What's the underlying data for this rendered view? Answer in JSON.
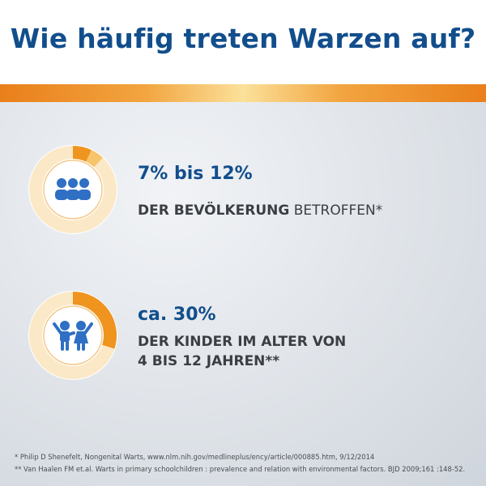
{
  "header": {
    "title": "Wie häufig treten Warzen auf?"
  },
  "stats": [
    {
      "value": "7% bis 12%",
      "desc_bold": "DER BEVÖLKERUNG",
      "desc_rest": " BETROFFEN*",
      "ring_fraction": 0.12,
      "icon": "people-group-icon"
    },
    {
      "value": "ca. 30%",
      "desc_line1": "DER KINDER IM ALTER VON",
      "desc_line2": "4 BIS 12 JAHREN**",
      "ring_fraction": 0.3,
      "icon": "children-icon"
    }
  ],
  "footnotes": [
    "* Philip D Shenefelt, Nongenital Warts, www.nlm.nih.gov/medlineplus/ency/article/000885.htm, 9/12/2014",
    "** Van Haalen FM et.al. Warts in primary schoolchildren : prevalence and relation with environmental factors. BJD 2009;161 :148-52."
  ],
  "colors": {
    "brand_blue": "#124e8c",
    "icon_blue": "#2f6fc4",
    "orange": "#ef941f",
    "orange_light": "#f7c46b",
    "ring_bg": "#fbe8c6"
  }
}
